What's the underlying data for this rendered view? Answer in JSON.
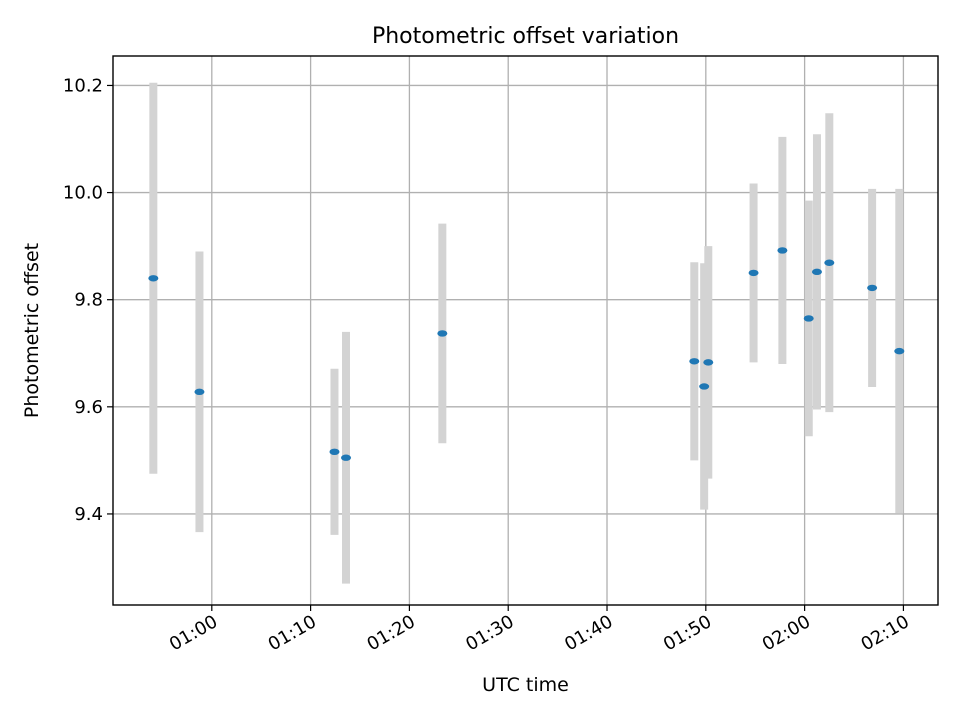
{
  "chart_data": {
    "type": "scatter",
    "title": "Photometric offset variation",
    "xlabel": "UTC time",
    "ylabel": "Photometric offset",
    "xlim": [
      "00:50:00",
      "02:13:30"
    ],
    "ylim": [
      9.23,
      10.255
    ],
    "x_ticks": [
      "01:00",
      "01:10",
      "01:20",
      "01:30",
      "01:40",
      "01:50",
      "02:00",
      "02:10"
    ],
    "y_ticks": [
      9.4,
      9.6,
      9.8,
      10.0,
      10.2
    ],
    "y_tick_labels": [
      "9.4",
      "9.6",
      "9.8",
      "10.0",
      "10.2"
    ],
    "grid": true,
    "point_color": "#1f77b4",
    "errorbar_color": "#d3d3d3",
    "points": [
      {
        "t": "00:54:05",
        "y": 9.84,
        "err": 0.365
      },
      {
        "t": "00:58:45",
        "y": 9.628,
        "err": 0.262
      },
      {
        "t": "01:12:25",
        "y": 9.516,
        "err": 0.155
      },
      {
        "t": "01:13:35",
        "y": 9.505,
        "err": 0.235
      },
      {
        "t": "01:23:20",
        "y": 9.737,
        "err": 0.205
      },
      {
        "t": "01:48:50",
        "y": 9.685,
        "err": 0.185
      },
      {
        "t": "01:49:50",
        "y": 9.638,
        "err": 0.23
      },
      {
        "t": "01:50:15",
        "y": 9.683,
        "err": 0.217
      },
      {
        "t": "01:54:50",
        "y": 9.85,
        "err": 0.167
      },
      {
        "t": "01:57:45",
        "y": 9.892,
        "err": 0.212
      },
      {
        "t": "02:00:25",
        "y": 9.765,
        "err": 0.22
      },
      {
        "t": "02:01:15",
        "y": 9.852,
        "err": 0.257
      },
      {
        "t": "02:02:30",
        "y": 9.869,
        "err": 0.279
      },
      {
        "t": "02:06:50",
        "y": 9.822,
        "err": 0.185
      },
      {
        "t": "02:09:35",
        "y": 9.704,
        "err": 0.303
      }
    ]
  }
}
